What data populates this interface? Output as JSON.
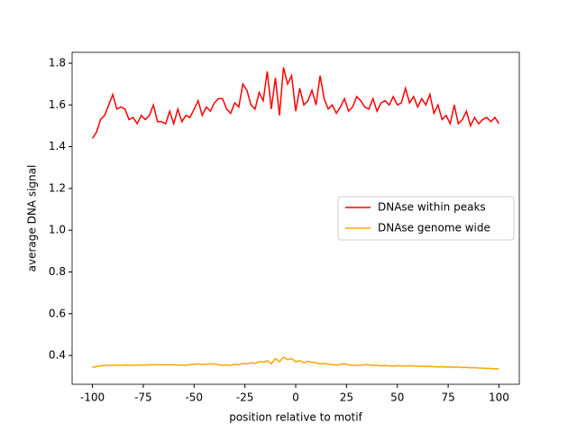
{
  "chart_data": {
    "type": "line",
    "xlabel": "position relative to motif",
    "ylabel": "average DNA signal",
    "x": [
      -100,
      -98,
      -96,
      -94,
      -92,
      -90,
      -88,
      -86,
      -84,
      -82,
      -80,
      -78,
      -76,
      -74,
      -72,
      -70,
      -68,
      -66,
      -64,
      -62,
      -60,
      -58,
      -56,
      -54,
      -52,
      -50,
      -48,
      -46,
      -44,
      -42,
      -40,
      -38,
      -36,
      -34,
      -32,
      -30,
      -28,
      -26,
      -24,
      -22,
      -20,
      -18,
      -16,
      -14,
      -12,
      -10,
      -8,
      -6,
      -4,
      -2,
      0,
      2,
      4,
      6,
      8,
      10,
      12,
      14,
      16,
      18,
      20,
      22,
      24,
      26,
      28,
      30,
      32,
      34,
      36,
      38,
      40,
      42,
      44,
      46,
      48,
      50,
      52,
      54,
      56,
      58,
      60,
      62,
      64,
      66,
      68,
      70,
      72,
      74,
      76,
      78,
      80,
      82,
      84,
      86,
      88,
      90,
      92,
      94,
      96,
      98,
      100
    ],
    "series": [
      {
        "name": "DNAse within peaks",
        "color": "#ff0000",
        "values": [
          1.44,
          1.47,
          1.53,
          1.55,
          1.6,
          1.65,
          1.58,
          1.59,
          1.58,
          1.53,
          1.54,
          1.51,
          1.55,
          1.53,
          1.55,
          1.6,
          1.52,
          1.52,
          1.51,
          1.57,
          1.51,
          1.58,
          1.52,
          1.55,
          1.54,
          1.58,
          1.62,
          1.55,
          1.59,
          1.57,
          1.61,
          1.63,
          1.63,
          1.58,
          1.56,
          1.61,
          1.59,
          1.7,
          1.67,
          1.6,
          1.58,
          1.66,
          1.62,
          1.76,
          1.58,
          1.73,
          1.55,
          1.78,
          1.7,
          1.74,
          1.57,
          1.68,
          1.6,
          1.62,
          1.67,
          1.6,
          1.74,
          1.63,
          1.58,
          1.6,
          1.56,
          1.59,
          1.63,
          1.57,
          1.59,
          1.64,
          1.62,
          1.59,
          1.58,
          1.63,
          1.57,
          1.61,
          1.62,
          1.6,
          1.64,
          1.6,
          1.61,
          1.68,
          1.61,
          1.64,
          1.59,
          1.63,
          1.6,
          1.65,
          1.56,
          1.6,
          1.53,
          1.55,
          1.51,
          1.6,
          1.51,
          1.53,
          1.57,
          1.5,
          1.54,
          1.51,
          1.53,
          1.54,
          1.52,
          1.54,
          1.51
        ]
      },
      {
        "name": "DNAse genome wide",
        "color": "#ffa500",
        "values": [
          0.343,
          0.347,
          0.35,
          0.352,
          0.353,
          0.353,
          0.354,
          0.353,
          0.354,
          0.354,
          0.353,
          0.354,
          0.355,
          0.354,
          0.355,
          0.356,
          0.356,
          0.355,
          0.356,
          0.355,
          0.356,
          0.354,
          0.355,
          0.353,
          0.356,
          0.357,
          0.36,
          0.356,
          0.358,
          0.36,
          0.359,
          0.356,
          0.353,
          0.355,
          0.352,
          0.358,
          0.356,
          0.362,
          0.36,
          0.365,
          0.362,
          0.37,
          0.368,
          0.375,
          0.36,
          0.385,
          0.37,
          0.392,
          0.38,
          0.385,
          0.37,
          0.375,
          0.365,
          0.372,
          0.368,
          0.365,
          0.36,
          0.362,
          0.358,
          0.356,
          0.354,
          0.358,
          0.36,
          0.355,
          0.352,
          0.354,
          0.353,
          0.356,
          0.355,
          0.352,
          0.354,
          0.35,
          0.352,
          0.35,
          0.349,
          0.351,
          0.35,
          0.349,
          0.351,
          0.35,
          0.348,
          0.349,
          0.347,
          0.348,
          0.346,
          0.345,
          0.346,
          0.344,
          0.345,
          0.343,
          0.345,
          0.342,
          0.343,
          0.341,
          0.342,
          0.34,
          0.339,
          0.338,
          0.338,
          0.336,
          0.335
        ]
      }
    ],
    "xlim": [
      -110,
      110
    ],
    "ylim": [
      0.262,
      1.852
    ],
    "xticks": [
      -100,
      -75,
      -50,
      -25,
      0,
      25,
      50,
      75,
      100
    ],
    "yticks": [
      0.4,
      0.6,
      0.8,
      {
        "value": 1,
        "label": "1.0"
      },
      1.2,
      1.4,
      1.6,
      1.8
    ],
    "legend": "center right"
  }
}
